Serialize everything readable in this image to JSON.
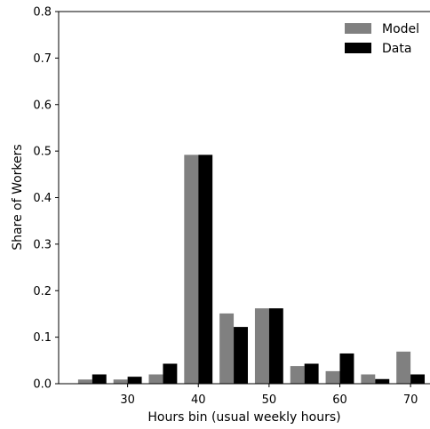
{
  "chart_data": {
    "type": "bar",
    "xlabel": "Hours bin (usual weekly hours)",
    "ylabel": "Share of Workers",
    "x_range": [
      20.25,
      72.75
    ],
    "ylim": [
      0,
      0.8
    ],
    "y_ticks": [
      "0.0",
      "0.1",
      "0.2",
      "0.3",
      "0.4",
      "0.5",
      "0.6",
      "0.7",
      "0.8"
    ],
    "x_ticks": [
      "30",
      "40",
      "50",
      "60",
      "70"
    ],
    "x_tick_values": [
      30,
      40,
      50,
      60,
      70
    ],
    "categories": [
      25,
      30,
      35,
      40,
      45,
      50,
      55,
      60,
      65,
      70
    ],
    "grid": false,
    "legend_position": "top-right",
    "series": [
      {
        "name": "Model",
        "color": "#808080",
        "values": [
          0.009,
          0.009,
          0.02,
          0.492,
          0.151,
          0.162,
          0.038,
          0.027,
          0.02,
          0.069
        ]
      },
      {
        "name": "Data",
        "color": "#000000",
        "values": [
          0.02,
          0.015,
          0.043,
          0.492,
          0.122,
          0.162,
          0.043,
          0.065,
          0.01,
          0.02
        ]
      }
    ]
  }
}
